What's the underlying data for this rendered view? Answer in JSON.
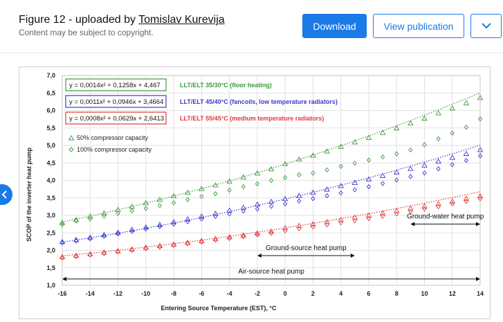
{
  "header": {
    "title_prefix": "Figure 12 - uploaded by ",
    "author": "Tomislav Kurevija",
    "subtitle": "Content may be subject to copyright.",
    "download_label": "Download",
    "view_publication_label": "View publication",
    "dropdown_icon": "chevron-down-icon",
    "accent_color": "#1a7ae8"
  },
  "nav": {
    "prev_icon": "chevron-left-icon"
  },
  "chart_data": {
    "type": "scatter",
    "xlabel": "Entering Source Temperature (EST), °C",
    "ylabel": "SCOP of the inverter heat pump",
    "xlim": [
      -16,
      14
    ],
    "ylim": [
      1.0,
      7.0
    ],
    "x_ticks": [
      "-16",
      "-14",
      "-12",
      "-10",
      "-8",
      "-6",
      "-4",
      "-2",
      "0",
      "2",
      "4",
      "6",
      "8",
      "10",
      "12",
      "14"
    ],
    "y_ticks": [
      "1,0",
      "1,5",
      "2,0",
      "2,5",
      "3,0",
      "3,5",
      "4,0",
      "4,5",
      "5,0",
      "5,5",
      "6,0",
      "6,5",
      "7,0"
    ],
    "grid": true,
    "x": [
      -16,
      -15,
      -14,
      -13,
      -12,
      -11,
      -10,
      -9,
      -8,
      -7,
      -6,
      -5,
      -4,
      -3,
      -2,
      -1,
      0,
      1,
      2,
      3,
      4,
      5,
      6,
      7,
      8,
      9,
      10,
      11,
      12,
      13,
      14
    ],
    "series": [
      {
        "label": "LLT/ELT 35/30°C (floor heating)",
        "equation": "y = 0,0014x² + 0,1258x + 4,467",
        "color": "#3a9a3a",
        "a": 0.0014,
        "b": 0.1258,
        "c": 4.467,
        "triangle": [
          2.79,
          2.87,
          2.97,
          3.06,
          3.16,
          3.25,
          3.35,
          3.45,
          3.55,
          3.65,
          3.76,
          3.86,
          3.97,
          4.09,
          4.2,
          4.32,
          4.47,
          4.6,
          4.71,
          4.83,
          4.96,
          5.09,
          5.22,
          5.36,
          5.49,
          5.63,
          5.77,
          5.92,
          6.06,
          6.21,
          6.36
        ],
        "diamond": [
          2.74,
          2.84,
          2.9,
          2.98,
          3.06,
          3.13,
          3.2,
          3.28,
          3.36,
          3.45,
          3.54,
          3.62,
          3.72,
          3.82,
          3.9,
          4.0,
          4.08,
          4.16,
          4.21,
          4.3,
          4.4,
          4.49,
          4.58,
          4.67,
          4.76,
          4.87,
          5.02,
          5.19,
          5.35,
          5.52,
          5.76
        ]
      },
      {
        "label": "LLT/ELT 45/40°C (fancoils, low temperature radiators)",
        "equation": "y = 0,0011x² + 0,0946x + 3,4664",
        "color": "#3a3acc",
        "a": 0.0011,
        "b": 0.0946,
        "c": 3.4664,
        "triangle": [
          2.24,
          2.3,
          2.37,
          2.44,
          2.51,
          2.59,
          2.66,
          2.73,
          2.81,
          2.89,
          2.97,
          3.05,
          3.14,
          3.22,
          3.31,
          3.39,
          3.47,
          3.56,
          3.65,
          3.74,
          3.84,
          3.93,
          4.03,
          4.13,
          4.23,
          4.33,
          4.43,
          4.54,
          4.65,
          4.76,
          4.87
        ],
        "diamond": [
          2.22,
          2.27,
          2.33,
          2.4,
          2.47,
          2.54,
          2.61,
          2.68,
          2.75,
          2.82,
          2.9,
          2.97,
          3.04,
          3.12,
          3.18,
          3.26,
          3.33,
          3.41,
          3.48,
          3.56,
          3.64,
          3.73,
          3.82,
          3.91,
          4.01,
          4.11,
          4.21,
          4.33,
          4.45,
          4.57,
          4.7
        ]
      },
      {
        "label": "LLT/ELT 55/45°C (medium temperature radiators)",
        "equation": "y = 0,0008x² + 0,0629x + 2,6413",
        "color": "#e03a3a",
        "a": 0.0008,
        "b": 0.0629,
        "c": 2.6413,
        "triangle": [
          1.81,
          1.85,
          1.89,
          1.94,
          1.98,
          2.03,
          2.08,
          2.13,
          2.17,
          2.22,
          2.27,
          2.33,
          2.38,
          2.43,
          2.49,
          2.54,
          2.64,
          2.7,
          2.75,
          2.81,
          2.87,
          2.94,
          3.0,
          3.06,
          3.13,
          3.2,
          3.26,
          3.33,
          3.4,
          3.48,
          3.55
        ],
        "diamond": [
          1.78,
          1.82,
          1.87,
          1.91,
          1.96,
          2.0,
          2.05,
          2.09,
          2.14,
          2.19,
          2.24,
          2.29,
          2.34,
          2.39,
          2.44,
          2.49,
          2.56,
          2.62,
          2.67,
          2.73,
          2.79,
          2.85,
          2.91,
          2.98,
          3.04,
          3.11,
          3.18,
          3.25,
          3.33,
          3.4,
          3.48
        ]
      }
    ],
    "legend_markers": [
      {
        "label": "50% compressor capacity",
        "marker": "triangle"
      },
      {
        "label": "100% compressor capacity",
        "marker": "diamond"
      }
    ],
    "ranges": [
      {
        "label": "Ground-water heat pump",
        "from": 9,
        "to": 14,
        "y": 2.75
      },
      {
        "label": "Ground-source heat pump",
        "from": -2,
        "to": 5,
        "y": 1.85
      },
      {
        "label": "Air-source heat pump",
        "from": -16,
        "to": 14,
        "y": 1.18
      }
    ]
  }
}
